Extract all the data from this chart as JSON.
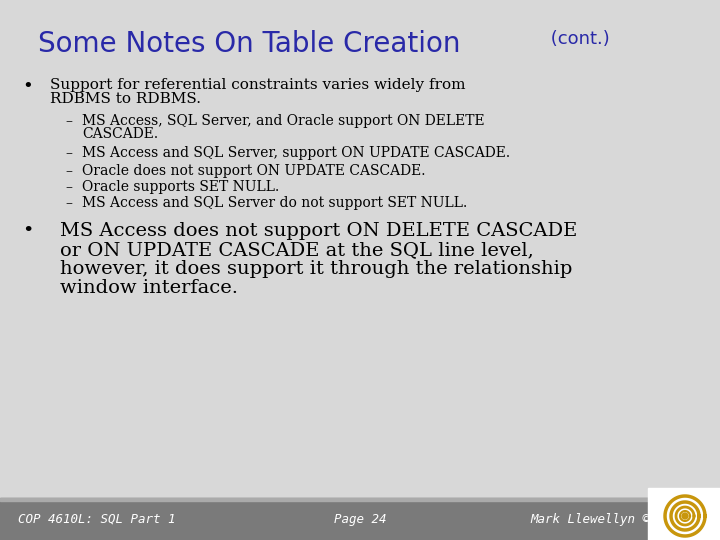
{
  "title_main": "Some Notes On Table Creation",
  "title_cont": " (cont.)",
  "title_color": "#2929a8",
  "title_fontsize": 20,
  "cont_fontsize": 13,
  "bg_color": "#d8d8d8",
  "footer_bg": "#888888",
  "text_color": "#000000",
  "bullet1_text_line1": "Support for referential constraints varies widely from",
  "bullet1_text_line2": "RDBMS to RDBMS.",
  "sub1_line1": "MS Access, SQL Server, and Oracle support ON DELETE",
  "sub1_line2": "CASCADE.",
  "sub2": "MS Access and SQL Server, support ON UPDATE CASCADE.",
  "sub3": "Oracle does not support ON UPDATE CASCADE.",
  "sub4": "Oracle supports SET NULL.",
  "sub5": "MS Access and SQL Server do not support SET NULL.",
  "bullet2_line1": "MS Access does not support ON DELETE CASCADE",
  "bullet2_line2": "or ON UPDATE CASCADE at the SQL line level,",
  "bullet2_line3": "however, it does support it through the relationship",
  "bullet2_line4": "window interface.",
  "footer_left": "COP 4610L: SQL Part 1",
  "footer_center": "Page 24",
  "footer_right": "Mark Llewellyn ©",
  "footer_fontsize": 9,
  "body_fontsize": 11,
  "sub_fontsize": 10,
  "bullet2_fontsize": 14
}
